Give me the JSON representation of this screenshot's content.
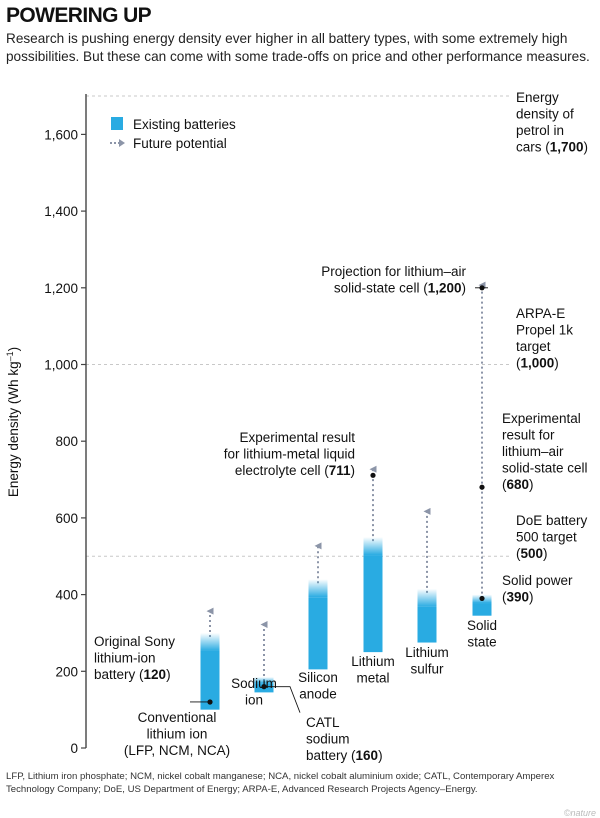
{
  "header": {
    "title": "POWERING UP",
    "subtitle": "Research is pushing energy density ever higher in all battery types, with some extremely high possibilities. But these can come with some trade-offs on price and other performance measures."
  },
  "footnote": "LFP, Lithium iron phosphate; NCM, nickel cobalt manganese; NCA, nickel cobalt aluminium oxide; CATL, Contemporary Amperex Technology Company; DoE, US Department of Energy; ARPA-E, Advanced Research Projects Agency–Energy.",
  "watermark": "©nature",
  "colors": {
    "bar": "#29abe2",
    "arrow": "#8c95a8",
    "ref_line": "#c8c8c8",
    "axis": "#444444",
    "text": "#111111"
  },
  "chart_data": {
    "type": "bar",
    "subtype": "floating-range",
    "ylabel": "Energy density (Wh kg",
    "ylabel_sup": "–1",
    "ylabel_close": ")",
    "ylim": [
      0,
      1700
    ],
    "yticks": [
      0,
      200,
      400,
      600,
      800,
      1000,
      1200,
      1400,
      1600
    ],
    "ytick_labels": [
      "0",
      "200",
      "400",
      "600",
      "800",
      "1,000",
      "1,200",
      "1,400",
      "1,600"
    ],
    "legend": {
      "existing": "Existing batteries",
      "future": "Future potential"
    },
    "categories": [
      {
        "label": [
          "Conventional",
          "lithium ion",
          "(LFP, NCM, NCA)"
        ],
        "range": [
          100,
          300
        ],
        "potential": 370
      },
      {
        "label": [
          "Sodium",
          "ion"
        ],
        "range": [
          145,
          185
        ],
        "potential": 335
      },
      {
        "label": [
          "Silicon",
          "anode"
        ],
        "range": [
          205,
          440
        ],
        "potential": 540
      },
      {
        "label": [
          "Lithium",
          "metal"
        ],
        "range": [
          250,
          550
        ],
        "potential": 740
      },
      {
        "label": [
          "Lithium",
          "sulfur"
        ],
        "range": [
          275,
          415
        ],
        "potential": 630
      },
      {
        "label": [
          "Solid",
          "state"
        ],
        "range": [
          345,
          400
        ],
        "potential": 1220
      }
    ],
    "reference_lines": [
      {
        "value": 1700,
        "label": [
          "Energy",
          "density of",
          "petrol in",
          "cars ("
        ],
        "bold": "1,700",
        "tail": ")"
      },
      {
        "value": 1000,
        "label": [
          "ARPA-E",
          "Propel 1k",
          "target",
          "("
        ],
        "bold": "1,000",
        "tail": ")"
      },
      {
        "value": 500,
        "label": [
          "DoE battery",
          "500 target",
          "("
        ],
        "bold": "500",
        "tail": ")"
      }
    ],
    "annotations": [
      {
        "value": 120,
        "label": [
          "Original Sony",
          "lithium-ion",
          "battery ("
        ],
        "bold": "120",
        "tail": ")"
      },
      {
        "value": 160,
        "label": [
          "CATL",
          "sodium",
          "battery ("
        ],
        "bold": "160",
        "tail": ")"
      },
      {
        "value": 711,
        "label": [
          "Experimental result",
          "for lithium-metal liquid",
          "electrolyte cell ("
        ],
        "bold": "711",
        "tail": ")"
      },
      {
        "value": 1200,
        "label": [
          "Projection for lithium–air",
          "solid-state cell ("
        ],
        "bold": "1,200",
        "tail": ")"
      },
      {
        "value": 680,
        "label": [
          "Experimental",
          "result for",
          "lithium–air",
          "solid-state cell",
          "("
        ],
        "bold": "680",
        "tail": ")"
      },
      {
        "value": 390,
        "label": [
          "Solid power",
          "("
        ],
        "bold": "390",
        "tail": ")"
      }
    ]
  }
}
